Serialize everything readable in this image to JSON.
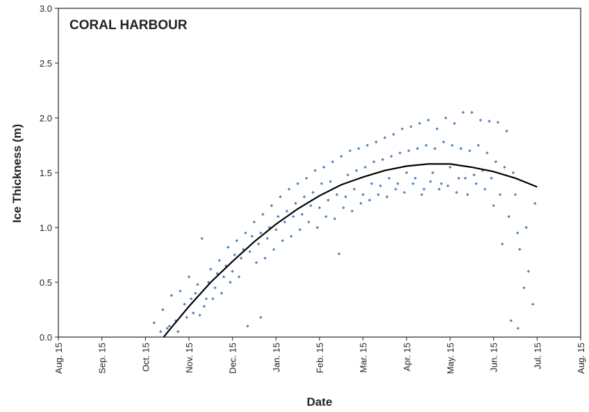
{
  "chart_data": {
    "type": "scatter",
    "title": "CORAL HARBOUR",
    "x_label": "Date",
    "y_label": "Ice Thickness (m)",
    "xlim": [
      0,
      12
    ],
    "xticks": [
      {
        "value": 0,
        "label": "Aug. 15"
      },
      {
        "value": 1,
        "label": "Sep. 15"
      },
      {
        "value": 2,
        "label": "Oct. 15"
      },
      {
        "value": 3,
        "label": "Nov. 15"
      },
      {
        "value": 4,
        "label": "Dec. 15"
      },
      {
        "value": 5,
        "label": "Jan. 15"
      },
      {
        "value": 6,
        "label": "Feb. 15"
      },
      {
        "value": 7,
        "label": "Mar. 15"
      },
      {
        "value": 8,
        "label": "Apr. 15"
      },
      {
        "value": 9,
        "label": "May. 15"
      },
      {
        "value": 10,
        "label": "Jun. 15"
      },
      {
        "value": 11,
        "label": "Jul. 15"
      },
      {
        "value": 12,
        "label": "Aug. 15"
      }
    ],
    "ylim": [
      0,
      3
    ],
    "yticks": [
      {
        "value": 0,
        "label": "0.0"
      },
      0.5,
      {
        "value": 1,
        "label": "1.0"
      },
      1.5,
      {
        "value": 2,
        "label": "2.0"
      },
      2.5,
      {
        "value": 3,
        "label": "3.0"
      }
    ],
    "grid": false,
    "series": [
      {
        "type": "scatter",
        "color": "#4f81bd",
        "x": [
          2.2,
          2.4,
          2.5,
          2.6,
          2.7,
          2.8,
          2.9,
          3.0,
          3.1,
          3.2,
          3.3,
          3.4,
          3.5,
          3.6,
          3.7,
          3.8,
          3.9,
          4.0,
          4.1,
          4.2,
          4.3,
          4.4,
          4.5,
          4.6,
          4.7,
          4.8,
          4.9,
          5.0,
          5.1,
          5.2,
          5.3,
          5.4,
          5.5,
          5.6,
          5.7,
          5.8,
          5.9,
          6.0,
          6.1,
          6.2,
          6.3,
          6.4,
          6.5,
          6.6,
          6.7,
          6.8,
          6.9,
          7.0,
          7.1,
          7.2,
          7.3,
          7.4,
          7.5,
          7.6,
          7.7,
          7.8,
          7.9,
          8.0,
          8.1,
          8.2,
          8.3,
          8.4,
          8.5,
          8.6,
          8.7,
          8.8,
          8.9,
          9.0,
          9.1,
          9.2,
          9.3,
          9.4,
          9.5,
          9.6,
          9.7,
          9.8,
          9.9,
          10.0,
          10.1,
          10.2,
          10.3,
          10.4,
          10.5,
          10.6,
          10.7,
          10.8,
          10.9,
          2.35,
          2.55,
          2.75,
          2.95,
          3.15,
          3.35,
          3.55,
          3.75,
          3.95,
          4.15,
          4.35,
          4.55,
          4.65,
          4.75,
          4.95,
          5.15,
          5.35,
          5.55,
          5.75,
          5.95,
          6.15,
          6.35,
          6.45,
          6.55,
          6.75,
          6.95,
          7.15,
          7.35,
          7.55,
          7.75,
          7.95,
          8.15,
          8.35,
          8.55,
          8.75,
          8.95,
          9.15,
          9.35,
          9.55,
          9.75,
          9.95,
          10.15,
          10.35,
          10.55,
          10.56,
          10.75,
          10.95,
          3.05,
          3.25,
          3.45,
          3.65,
          3.85,
          4.05,
          4.25,
          4.45,
          4.65,
          4.85,
          5.05,
          5.25,
          5.45,
          5.65,
          5.85,
          6.05,
          6.25,
          6.65,
          6.85,
          7.05,
          7.25,
          7.45,
          7.65,
          7.85,
          8.05,
          8.25,
          8.45,
          8.65,
          8.85,
          9.05,
          9.25,
          9.45,
          9.65,
          9.85,
          10.05,
          10.25,
          10.45
        ],
        "values": [
          0.13,
          0.25,
          0.08,
          0.38,
          0.15,
          0.42,
          0.3,
          0.55,
          0.22,
          0.48,
          0.9,
          0.35,
          0.62,
          0.45,
          0.7,
          0.55,
          0.82,
          0.6,
          0.88,
          0.72,
          0.95,
          0.78,
          1.05,
          0.85,
          1.12,
          0.9,
          1.2,
          0.98,
          1.28,
          1.05,
          1.35,
          1.1,
          1.4,
          1.12,
          1.45,
          1.2,
          1.52,
          1.18,
          1.55,
          1.25,
          1.6,
          1.3,
          1.65,
          1.28,
          1.7,
          1.35,
          1.72,
          1.3,
          1.75,
          1.4,
          1.78,
          1.38,
          1.82,
          1.45,
          1.85,
          1.4,
          1.9,
          1.5,
          1.92,
          1.45,
          1.95,
          1.35,
          1.98,
          1.5,
          1.9,
          1.4,
          2.0,
          1.55,
          1.95,
          1.45,
          2.05,
          1.3,
          2.05,
          1.4,
          1.98,
          1.35,
          1.97,
          1.2,
          1.96,
          0.85,
          1.88,
          0.15,
          1.3,
          0.8,
          0.45,
          0.6,
          0.3,
          0.05,
          0.1,
          0.05,
          0.18,
          0.4,
          0.28,
          0.35,
          0.4,
          0.5,
          0.55,
          0.1,
          0.68,
          0.18,
          0.72,
          0.8,
          0.88,
          0.92,
          0.98,
          1.05,
          1.0,
          1.1,
          1.08,
          0.76,
          1.18,
          1.15,
          1.22,
          1.25,
          1.3,
          1.28,
          1.35,
          1.32,
          1.4,
          1.3,
          1.42,
          1.35,
          1.38,
          1.32,
          1.45,
          1.48,
          1.52,
          1.45,
          1.3,
          1.1,
          0.95,
          0.08,
          1.0,
          1.22,
          0.35,
          0.2,
          0.5,
          0.58,
          0.65,
          0.75,
          0.8,
          0.92,
          0.95,
          1.0,
          1.1,
          1.15,
          1.22,
          1.28,
          1.32,
          1.4,
          1.42,
          1.48,
          1.52,
          1.55,
          1.6,
          1.62,
          1.65,
          1.68,
          1.7,
          1.72,
          1.75,
          1.72,
          1.78,
          1.75,
          1.72,
          1.7,
          1.75,
          1.68,
          1.6,
          1.55,
          1.5
        ]
      },
      {
        "type": "line",
        "color": "#000000",
        "x": [
          2.42,
          2.5,
          3,
          3.5,
          4,
          4.5,
          5,
          5.5,
          6,
          6.5,
          7,
          7.5,
          8,
          8.5,
          9,
          9.5,
          10,
          10.5,
          11
        ],
        "values": [
          0,
          0.04,
          0.28,
          0.5,
          0.69,
          0.87,
          1.03,
          1.17,
          1.29,
          1.39,
          1.46,
          1.52,
          1.56,
          1.58,
          1.58,
          1.55,
          1.51,
          1.45,
          1.37
        ]
      }
    ]
  }
}
